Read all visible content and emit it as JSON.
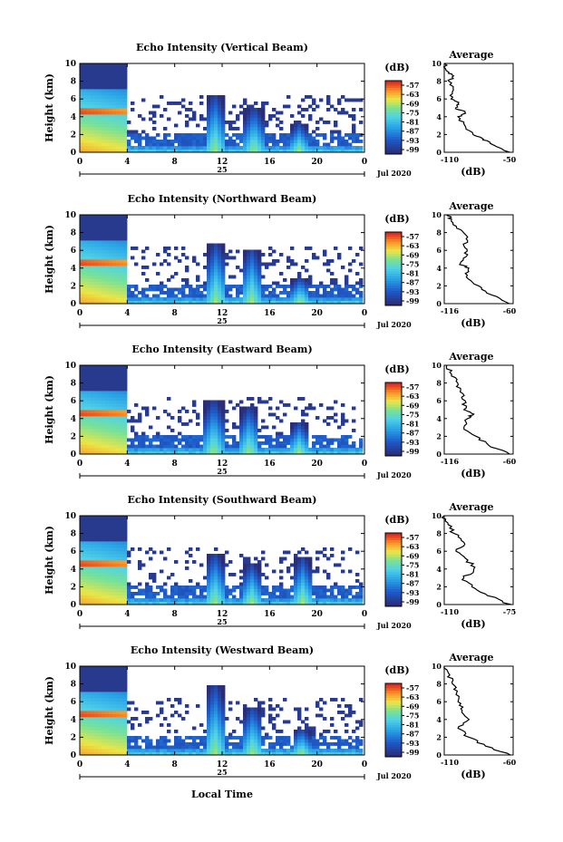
{
  "figure": {
    "bottom_xlabel": "Local Time",
    "date_label": "Jul 2020",
    "day_label": "25",
    "colorbar_unit": "(dB)",
    "average_title": "Average",
    "average_xlabel": "(dB)"
  },
  "chart_data": [
    {
      "type": "heatmap",
      "title": "Echo Intensity (Vertical Beam)",
      "ylabel": "Height (km)",
      "x_ticks": [
        "0",
        "4",
        "8",
        "12",
        "16",
        "20",
        "0"
      ],
      "y_ticks": [
        "0",
        "2",
        "4",
        "6",
        "8",
        "10"
      ],
      "xlim": [
        0,
        24
      ],
      "ylim": [
        0,
        10
      ],
      "colorbar_ticks": [
        "-57",
        "-63",
        "-69",
        "-75",
        "-81",
        "-87",
        "-93",
        "-99"
      ],
      "peaks": [
        {
          "center_hour": 11.4,
          "top_km": 6.5
        },
        {
          "center_hour": 14.7,
          "top_km": 5.0
        },
        {
          "center_hour": 18.5,
          "top_km": 3.2
        }
      ],
      "average": {
        "xlim": [
          -110,
          -50
        ],
        "x_ticks": [
          "-110",
          "-50"
        ],
        "y_ticks": [
          "0",
          "2",
          "4",
          "6",
          "8",
          "10"
        ],
        "profile": [
          [
            -53,
            0
          ],
          [
            -70,
            1
          ],
          [
            -76,
            1.5
          ],
          [
            -85,
            2
          ],
          [
            -92,
            3
          ],
          [
            -98,
            4
          ],
          [
            -92,
            4.5
          ],
          [
            -100,
            5
          ],
          [
            -98,
            5.5
          ],
          [
            -104,
            6
          ],
          [
            -102,
            7
          ],
          [
            -106,
            8
          ],
          [
            -103,
            8.5
          ],
          [
            -106,
            9
          ],
          [
            -110,
            10
          ]
        ]
      }
    },
    {
      "type": "heatmap",
      "title": "Echo Intensity (Northward Beam)",
      "ylabel": "Height (km)",
      "x_ticks": [
        "0",
        "4",
        "8",
        "12",
        "16",
        "20",
        "0"
      ],
      "y_ticks": [
        "0",
        "2",
        "4",
        "6",
        "8",
        "10"
      ],
      "xlim": [
        0,
        24
      ],
      "ylim": [
        0,
        10
      ],
      "colorbar_ticks": [
        "-57",
        "-63",
        "-69",
        "-75",
        "-81",
        "-87",
        "-93",
        "-99"
      ],
      "peaks": [
        {
          "center_hour": 11.5,
          "top_km": 6.8
        },
        {
          "center_hour": 14.5,
          "top_km": 6.2
        },
        {
          "center_hour": 18.6,
          "top_km": 3.0
        }
      ],
      "average": {
        "xlim": [
          -116,
          -60
        ],
        "x_ticks": [
          "-116",
          "-60"
        ],
        "y_ticks": [
          "0",
          "2",
          "4",
          "6",
          "8",
          "10"
        ],
        "profile": [
          [
            -63,
            0
          ],
          [
            -78,
            1
          ],
          [
            -88,
            2
          ],
          [
            -98,
            3
          ],
          [
            -96,
            4
          ],
          [
            -103,
            4.5
          ],
          [
            -97,
            5.5
          ],
          [
            -100,
            6.5
          ],
          [
            -97,
            7.5
          ],
          [
            -106,
            8.5
          ],
          [
            -110,
            9.5
          ],
          [
            -114,
            10
          ]
        ]
      }
    },
    {
      "type": "heatmap",
      "title": "Echo Intensity (Eastward Beam)",
      "ylabel": "Height (km)",
      "x_ticks": [
        "0",
        "4",
        "8",
        "12",
        "16",
        "20",
        "0"
      ],
      "y_ticks": [
        "0",
        "2",
        "4",
        "6",
        "8",
        "10"
      ],
      "xlim": [
        0,
        24
      ],
      "ylim": [
        0,
        10
      ],
      "colorbar_ticks": [
        "-57",
        "-63",
        "-69",
        "-75",
        "-81",
        "-87",
        "-93",
        "-99"
      ],
      "peaks": [
        {
          "center_hour": 11.3,
          "top_km": 6.0
        },
        {
          "center_hour": 14.3,
          "top_km": 5.2
        },
        {
          "center_hour": 18.5,
          "top_km": 3.5
        }
      ],
      "average": {
        "xlim": [
          -116,
          -60
        ],
        "x_ticks": [
          "-116",
          "-60"
        ],
        "y_ticks": [
          "0",
          "2",
          "4",
          "6",
          "8",
          "10"
        ],
        "profile": [
          [
            -63,
            0
          ],
          [
            -80,
            1
          ],
          [
            -90,
            2
          ],
          [
            -100,
            3
          ],
          [
            -97,
            4
          ],
          [
            -92,
            4.5
          ],
          [
            -100,
            5
          ],
          [
            -99,
            6
          ],
          [
            -103,
            7
          ],
          [
            -105,
            8
          ],
          [
            -110,
            9
          ],
          [
            -114,
            10
          ]
        ]
      }
    },
    {
      "type": "heatmap",
      "title": "Echo Intensity (Southward Beam)",
      "ylabel": "Height (km)",
      "x_ticks": [
        "0",
        "4",
        "8",
        "12",
        "16",
        "20",
        "0"
      ],
      "y_ticks": [
        "0",
        "2",
        "4",
        "6",
        "8",
        "10"
      ],
      "xlim": [
        0,
        24
      ],
      "ylim": [
        0,
        10
      ],
      "colorbar_ticks": [
        "-57",
        "-63",
        "-69",
        "-75",
        "-81",
        "-87",
        "-93",
        "-99"
      ],
      "peaks": [
        {
          "center_hour": 11.4,
          "top_km": 5.8
        },
        {
          "center_hour": 14.5,
          "top_km": 4.5
        },
        {
          "center_hour": 18.8,
          "top_km": 5.2
        }
      ],
      "average": {
        "xlim": [
          -110,
          -75
        ],
        "x_ticks": [
          "-110",
          "-75"
        ],
        "y_ticks": [
          "0",
          "2",
          "4",
          "6",
          "8",
          "10"
        ],
        "profile": [
          [
            -76,
            0
          ],
          [
            -88,
            1
          ],
          [
            -96,
            2
          ],
          [
            -100,
            3
          ],
          [
            -95,
            4
          ],
          [
            -98,
            5
          ],
          [
            -104,
            6
          ],
          [
            -100,
            7
          ],
          [
            -105,
            8
          ],
          [
            -108,
            9
          ],
          [
            -110,
            10
          ]
        ]
      }
    },
    {
      "type": "heatmap",
      "title": "Echo Intensity (Westward Beam)",
      "ylabel": "Height (km)",
      "x_ticks": [
        "0",
        "4",
        "8",
        "12",
        "16",
        "20",
        "0"
      ],
      "y_ticks": [
        "0",
        "2",
        "4",
        "6",
        "8",
        "10"
      ],
      "xlim": [
        0,
        24
      ],
      "ylim": [
        0,
        10
      ],
      "colorbar_ticks": [
        "-57",
        "-63",
        "-69",
        "-75",
        "-81",
        "-87",
        "-93",
        "-99"
      ],
      "peaks": [
        {
          "center_hour": 11.4,
          "top_km": 8.0
        },
        {
          "center_hour": 14.6,
          "top_km": 5.5
        },
        {
          "center_hour": 18.7,
          "top_km": 3.0
        }
      ],
      "average": {
        "xlim": [
          -110,
          -60
        ],
        "x_ticks": [
          "-110",
          "-60"
        ],
        "y_ticks": [
          "0",
          "2",
          "4",
          "6",
          "8",
          "10"
        ],
        "profile": [
          [
            -62,
            0
          ],
          [
            -80,
            1
          ],
          [
            -92,
            2
          ],
          [
            -100,
            3
          ],
          [
            -92,
            4
          ],
          [
            -97,
            5
          ],
          [
            -100,
            6
          ],
          [
            -101,
            7
          ],
          [
            -104,
            8
          ],
          [
            -106,
            9
          ],
          [
            -110,
            10
          ]
        ]
      }
    }
  ]
}
